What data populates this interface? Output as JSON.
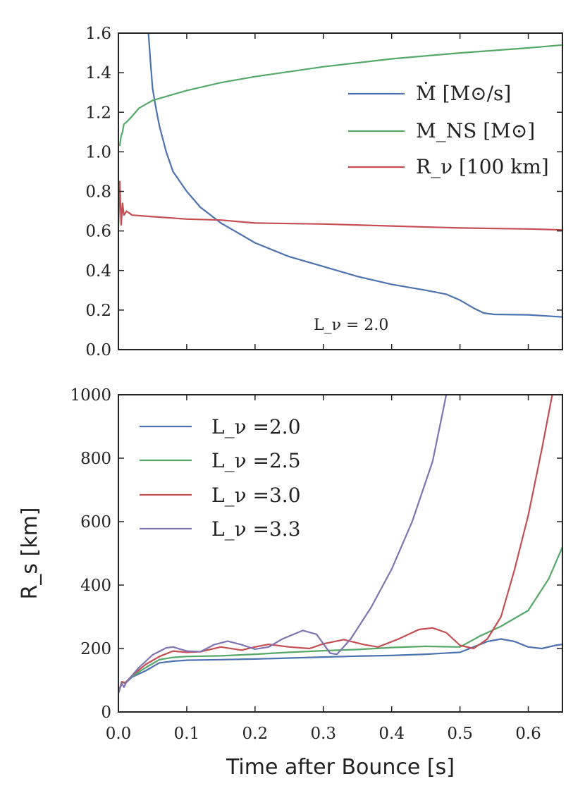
{
  "colors": {
    "blue": "#4c72b0",
    "green": "#55a868",
    "red": "#c44e52",
    "purple": "#8172b2"
  },
  "chart_data": [
    {
      "type": "line",
      "panel": "top",
      "xlim": [
        0,
        0.65
      ],
      "ylim": [
        0,
        1.6
      ],
      "xticks": [
        0.0,
        0.1,
        0.2,
        0.3,
        0.4,
        0.5,
        0.6
      ],
      "yticks": [
        0.0,
        0.2,
        0.4,
        0.6,
        0.8,
        1.0,
        1.2,
        1.4,
        1.6
      ],
      "ytick_labels": [
        "0.0",
        "0.2",
        "0.4",
        "0.6",
        "0.8",
        "1.0",
        "1.2",
        "1.4",
        "1.6"
      ],
      "annotation": "L_ν = 2.0",
      "legend_position": "top-right",
      "series": [
        {
          "name": "Ṁ [M⊙/s]",
          "color": "#4c72b0",
          "points": [
            [
              0.044,
              1.6
            ],
            [
              0.047,
              1.45
            ],
            [
              0.05,
              1.32
            ],
            [
              0.055,
              1.22
            ],
            [
              0.06,
              1.13
            ],
            [
              0.07,
              1.0
            ],
            [
              0.08,
              0.9
            ],
            [
              0.1,
              0.8
            ],
            [
              0.12,
              0.72
            ],
            [
              0.15,
              0.64
            ],
            [
              0.18,
              0.58
            ],
            [
              0.2,
              0.54
            ],
            [
              0.25,
              0.47
            ],
            [
              0.3,
              0.42
            ],
            [
              0.35,
              0.37
            ],
            [
              0.4,
              0.33
            ],
            [
              0.45,
              0.3
            ],
            [
              0.48,
              0.28
            ],
            [
              0.5,
              0.25
            ],
            [
              0.52,
              0.21
            ],
            [
              0.535,
              0.185
            ],
            [
              0.55,
              0.178
            ],
            [
              0.6,
              0.176
            ],
            [
              0.65,
              0.165
            ]
          ]
        },
        {
          "name": "M_NS [M⊙]",
          "color": "#55a868",
          "points": [
            [
              0.002,
              1.03
            ],
            [
              0.004,
              1.08
            ],
            [
              0.006,
              1.1
            ],
            [
              0.008,
              1.14
            ],
            [
              0.012,
              1.15
            ],
            [
              0.02,
              1.18
            ],
            [
              0.03,
              1.22
            ],
            [
              0.05,
              1.26
            ],
            [
              0.1,
              1.31
            ],
            [
              0.15,
              1.35
            ],
            [
              0.2,
              1.38
            ],
            [
              0.3,
              1.43
            ],
            [
              0.4,
              1.47
            ],
            [
              0.5,
              1.5
            ],
            [
              0.6,
              1.525
            ],
            [
              0.65,
              1.54
            ]
          ]
        },
        {
          "name": "R_ν [100 km]",
          "color": "#c44e52",
          "points": [
            [
              0.0,
              0.62
            ],
            [
              0.002,
              0.85
            ],
            [
              0.004,
              0.63
            ],
            [
              0.006,
              0.74
            ],
            [
              0.008,
              0.68
            ],
            [
              0.012,
              0.7
            ],
            [
              0.02,
              0.68
            ],
            [
              0.04,
              0.675
            ],
            [
              0.06,
              0.67
            ],
            [
              0.1,
              0.66
            ],
            [
              0.15,
              0.655
            ],
            [
              0.2,
              0.64
            ],
            [
              0.3,
              0.635
            ],
            [
              0.4,
              0.625
            ],
            [
              0.5,
              0.615
            ],
            [
              0.6,
              0.61
            ],
            [
              0.65,
              0.605
            ]
          ]
        }
      ]
    },
    {
      "type": "line",
      "panel": "bottom",
      "xlim": [
        0,
        0.65
      ],
      "ylim": [
        0,
        1000
      ],
      "xticks": [
        0.0,
        0.1,
        0.2,
        0.3,
        0.4,
        0.5,
        0.6
      ],
      "xtick_labels": [
        "0.0",
        "0.1",
        "0.2",
        "0.3",
        "0.4",
        "0.5",
        "0.6"
      ],
      "yticks": [
        0,
        200,
        400,
        600,
        800,
        1000
      ],
      "ytick_labels": [
        "0",
        "200",
        "400",
        "600",
        "800",
        "1000"
      ],
      "xlabel": "Time after Bounce [s]",
      "ylabel": "R_s [km]",
      "legend_position": "top-left",
      "series": [
        {
          "name": "L_ν =2.0",
          "color": "#4c72b0",
          "points": [
            [
              0.0,
              60
            ],
            [
              0.005,
              95
            ],
            [
              0.01,
              90
            ],
            [
              0.02,
              110
            ],
            [
              0.04,
              130
            ],
            [
              0.06,
              155
            ],
            [
              0.08,
              160
            ],
            [
              0.1,
              163
            ],
            [
              0.15,
              165
            ],
            [
              0.2,
              167
            ],
            [
              0.25,
              170
            ],
            [
              0.3,
              173
            ],
            [
              0.35,
              176
            ],
            [
              0.4,
              178
            ],
            [
              0.45,
              182
            ],
            [
              0.5,
              188
            ],
            [
              0.52,
              205
            ],
            [
              0.54,
              222
            ],
            [
              0.56,
              230
            ],
            [
              0.58,
              222
            ],
            [
              0.6,
              205
            ],
            [
              0.62,
              200
            ],
            [
              0.64,
              210
            ],
            [
              0.65,
              213
            ]
          ]
        },
        {
          "name": "L_ν =2.5",
          "color": "#55a868",
          "points": [
            [
              0.0,
              60
            ],
            [
              0.005,
              95
            ],
            [
              0.01,
              92
            ],
            [
              0.02,
              112
            ],
            [
              0.04,
              140
            ],
            [
              0.06,
              165
            ],
            [
              0.08,
              172
            ],
            [
              0.1,
              175
            ],
            [
              0.15,
              177
            ],
            [
              0.2,
              182
            ],
            [
              0.25,
              188
            ],
            [
              0.3,
              193
            ],
            [
              0.35,
              197
            ],
            [
              0.4,
              203
            ],
            [
              0.45,
              207
            ],
            [
              0.5,
              205
            ],
            [
              0.53,
              240
            ],
            [
              0.56,
              270
            ],
            [
              0.6,
              320
            ],
            [
              0.63,
              420
            ],
            [
              0.65,
              520
            ]
          ]
        },
        {
          "name": "L_ν =3.0",
          "color": "#c44e52",
          "points": [
            [
              0.0,
              60
            ],
            [
              0.005,
              95
            ],
            [
              0.01,
              92
            ],
            [
              0.02,
              115
            ],
            [
              0.04,
              150
            ],
            [
              0.06,
              175
            ],
            [
              0.08,
              192
            ],
            [
              0.1,
              188
            ],
            [
              0.12,
              190
            ],
            [
              0.15,
              205
            ],
            [
              0.18,
              195
            ],
            [
              0.2,
              205
            ],
            [
              0.22,
              213
            ],
            [
              0.25,
              205
            ],
            [
              0.28,
              200
            ],
            [
              0.3,
              215
            ],
            [
              0.33,
              228
            ],
            [
              0.36,
              212
            ],
            [
              0.38,
              205
            ],
            [
              0.41,
              230
            ],
            [
              0.44,
              260
            ],
            [
              0.46,
              265
            ],
            [
              0.48,
              250
            ],
            [
              0.5,
              210
            ],
            [
              0.52,
              200
            ],
            [
              0.54,
              230
            ],
            [
              0.56,
              300
            ],
            [
              0.58,
              450
            ],
            [
              0.6,
              620
            ],
            [
              0.62,
              830
            ],
            [
              0.635,
              1000
            ]
          ]
        },
        {
          "name": "L_ν =3.3",
          "color": "#8172b2",
          "points": [
            [
              0.0,
              60
            ],
            [
              0.005,
              90
            ],
            [
              0.008,
              78
            ],
            [
              0.012,
              95
            ],
            [
              0.03,
              140
            ],
            [
              0.05,
              180
            ],
            [
              0.07,
              202
            ],
            [
              0.08,
              205
            ],
            [
              0.1,
              192
            ],
            [
              0.12,
              190
            ],
            [
              0.14,
              212
            ],
            [
              0.16,
              223
            ],
            [
              0.18,
              212
            ],
            [
              0.2,
              198
            ],
            [
              0.22,
              205
            ],
            [
              0.24,
              230
            ],
            [
              0.27,
              257
            ],
            [
              0.29,
              245
            ],
            [
              0.31,
              185
            ],
            [
              0.32,
              182
            ],
            [
              0.34,
              230
            ],
            [
              0.37,
              330
            ],
            [
              0.4,
              450
            ],
            [
              0.43,
              600
            ],
            [
              0.46,
              790
            ],
            [
              0.48,
              1000
            ]
          ]
        }
      ]
    }
  ]
}
